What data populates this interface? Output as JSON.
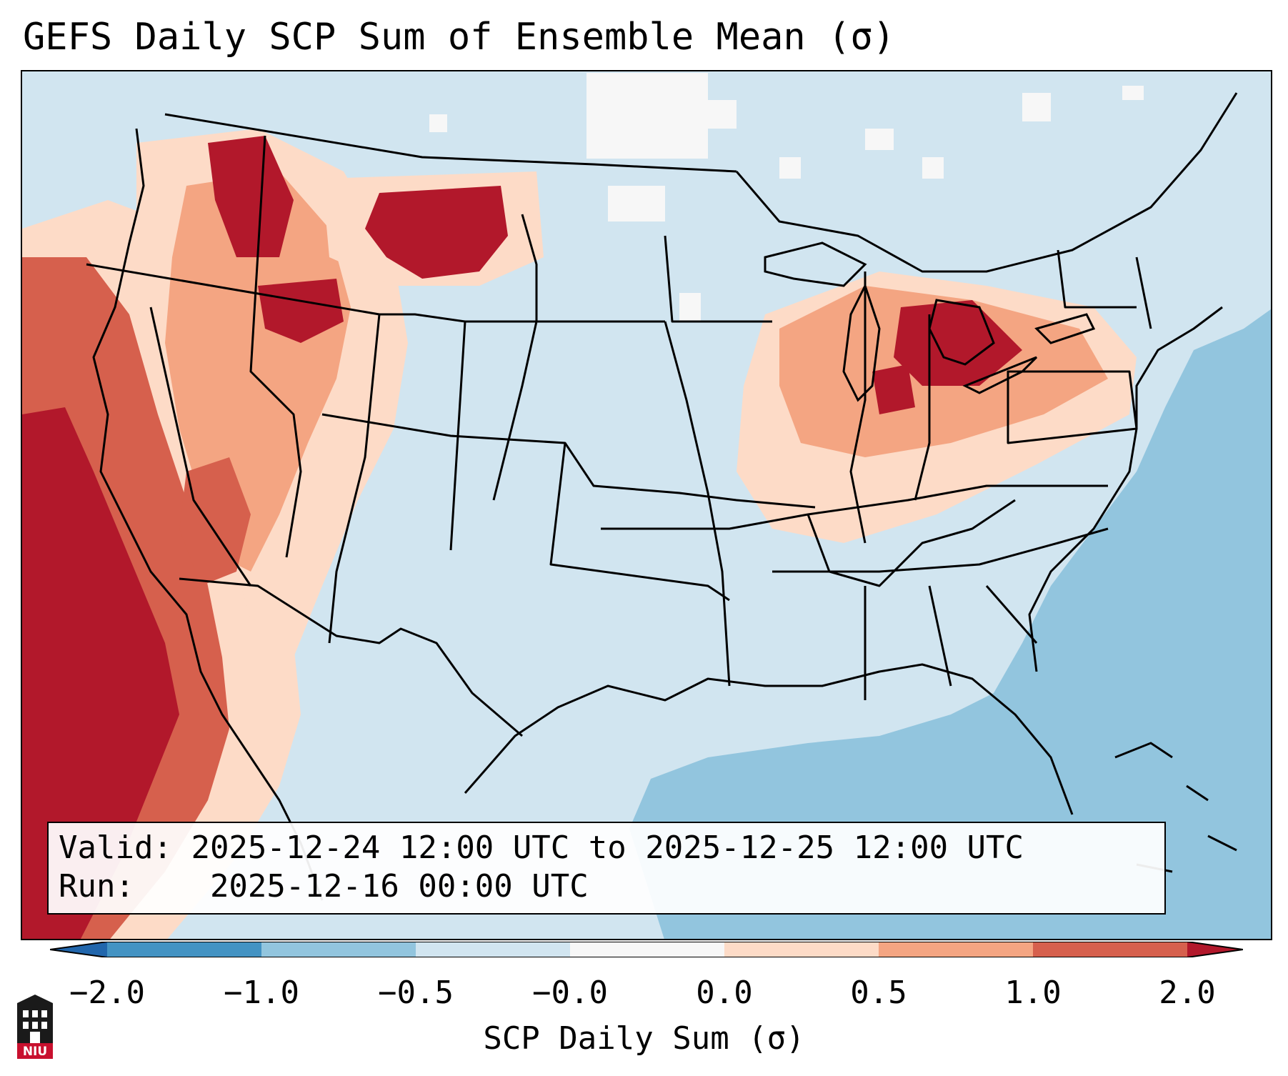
{
  "title": "GEFS Daily SCP Sum of Ensemble Mean (σ)",
  "info": {
    "valid_label": "Valid:",
    "valid_value": "2025-12-24 12:00 UTC to 2025-12-25 12:00 UTC",
    "run_label": "Run:",
    "run_value": "2025-12-16 00:00 UTC"
  },
  "colorbar": {
    "label": "SCP Daily Sum (σ)",
    "ticks": [
      "−2.0",
      "−1.0",
      "−0.5",
      "−0.0",
      "0.0",
      "0.5",
      "1.0",
      "2.0"
    ],
    "bins": [
      {
        "range": "<-2.0",
        "color": "#2166ac"
      },
      {
        "range": "-2.0 to -1.0",
        "color": "#4393c3"
      },
      {
        "range": "-1.0 to -0.5",
        "color": "#92c5de"
      },
      {
        "range": "-0.5 to -0.0",
        "color": "#d1e5f0"
      },
      {
        "range": "-0.0 to 0.0",
        "color": "#f7f7f7"
      },
      {
        "range": "0.0 to 0.5",
        "color": "#fddbc7"
      },
      {
        "range": "0.5 to 1.0",
        "color": "#f4a582"
      },
      {
        "range": "1.0 to 2.0",
        "color": "#d6604d"
      },
      {
        "range": ">2.0",
        "color": "#b2182b"
      }
    ]
  },
  "logo": {
    "text": "NIU",
    "color": "#c8102e"
  }
}
